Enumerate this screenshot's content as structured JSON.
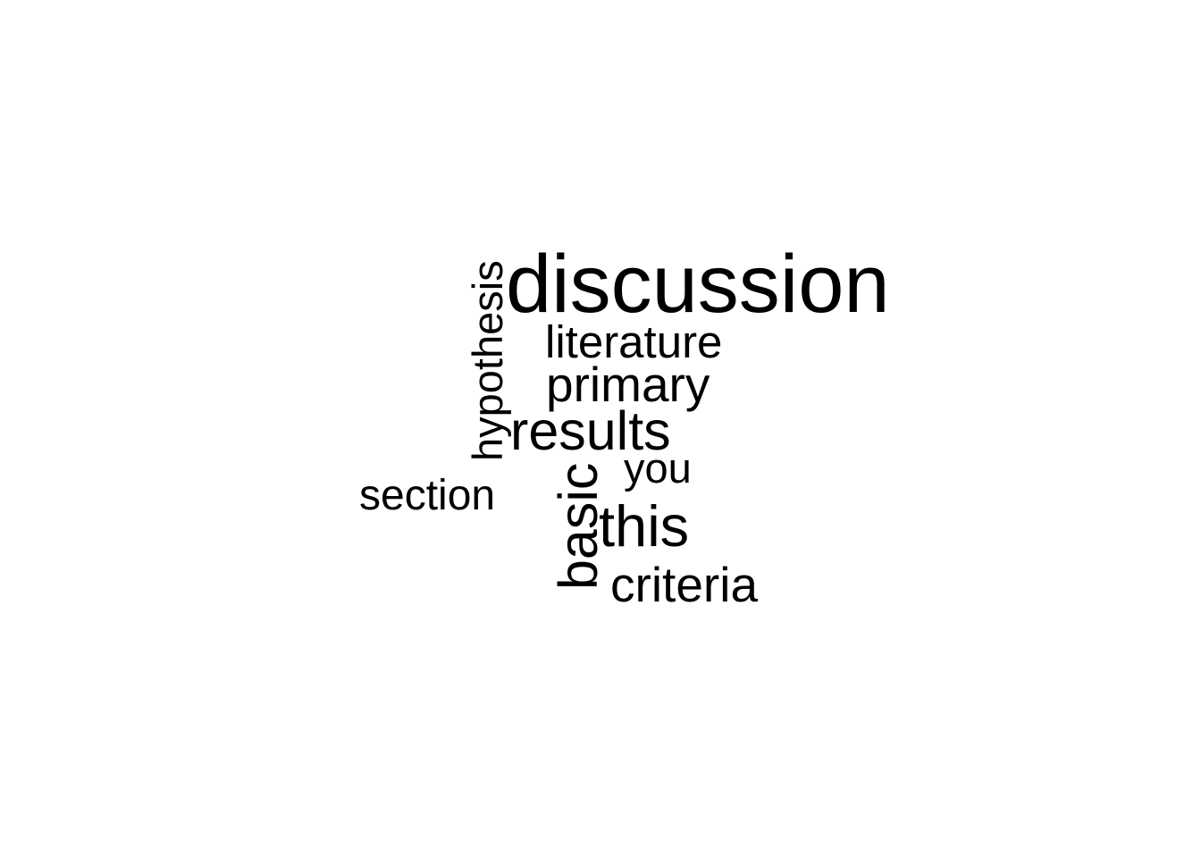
{
  "wordcloud": {
    "words": [
      {
        "text": "discussion",
        "color": "#000000"
      },
      {
        "text": "literature",
        "color": "#000000"
      },
      {
        "text": "primary",
        "color": "#000000"
      },
      {
        "text": "results",
        "color": "#000000"
      },
      {
        "text": "you",
        "color": "#000000"
      },
      {
        "text": "section",
        "color": "#000000"
      },
      {
        "text": "this",
        "color": "#000000"
      },
      {
        "text": "criteria",
        "color": "#000000"
      },
      {
        "text": "hypothesis",
        "color": "#000000"
      },
      {
        "text": "basic",
        "color": "#000000"
      }
    ]
  }
}
